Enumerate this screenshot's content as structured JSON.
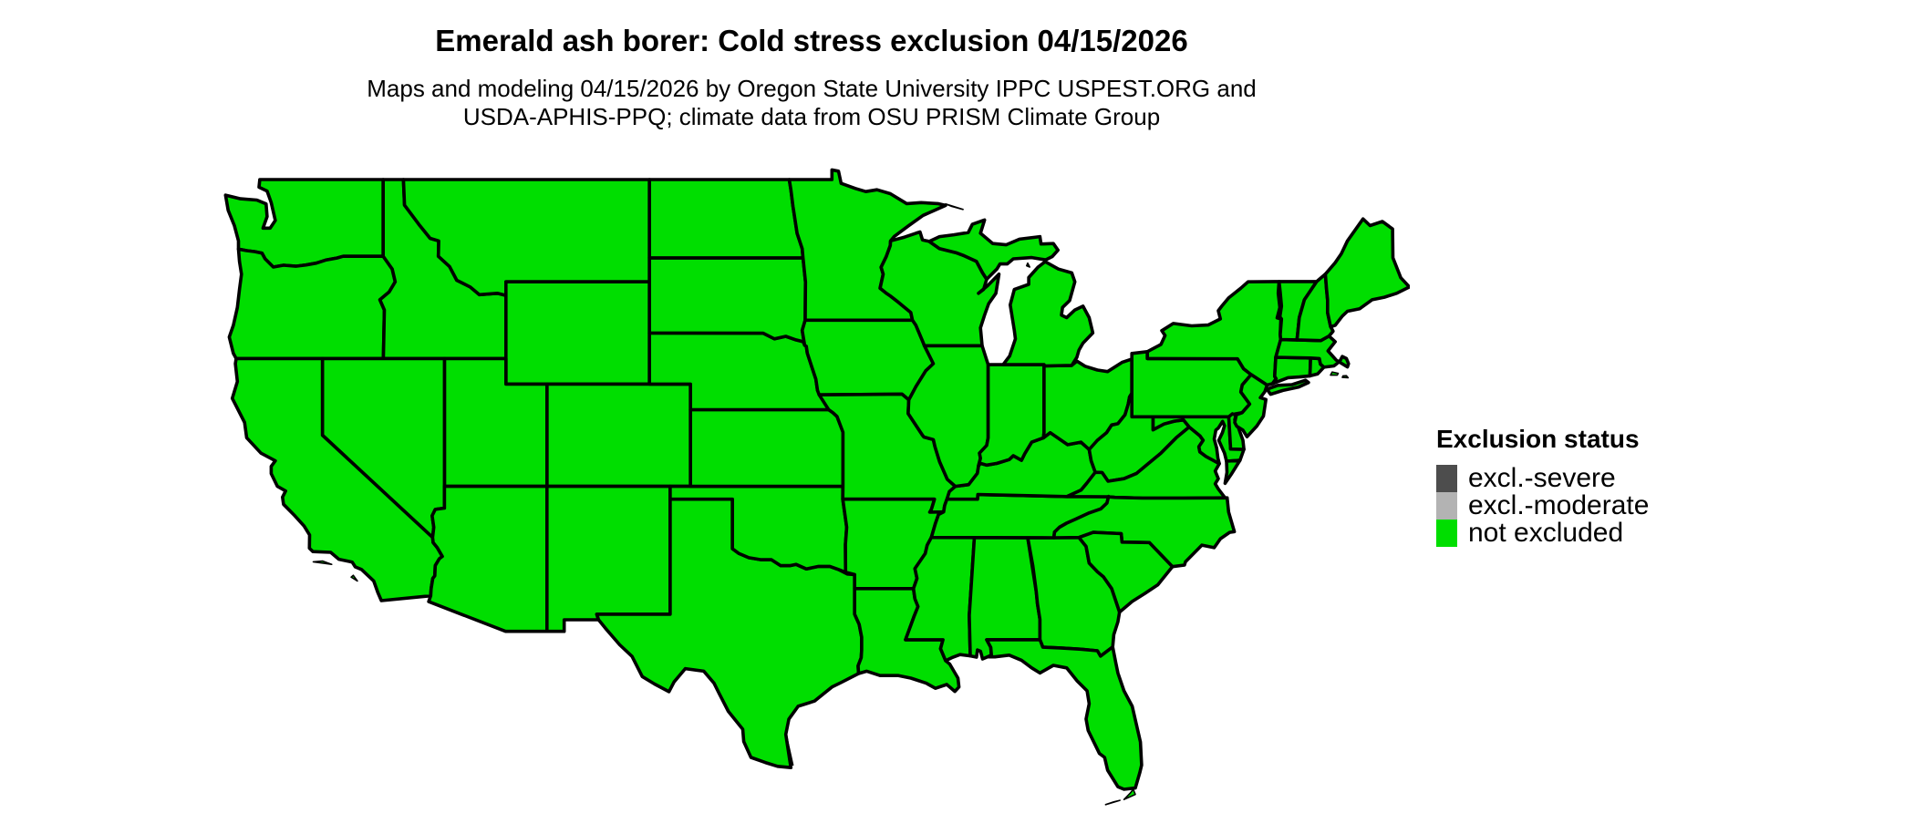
{
  "header": {
    "title": "Emerald ash borer: Cold stress exclusion 04/15/2026",
    "subtitle_line1": "Maps and modeling 04/15/2026 by Oregon State University IPPC USPEST.ORG and",
    "subtitle_line2": "USDA-APHIS-PPQ; climate data from OSU PRISM Climate Group"
  },
  "legend": {
    "title": "Exclusion status",
    "items": [
      {
        "label": "excl.-severe",
        "color": "#4d4d4d"
      },
      {
        "label": "excl.-moderate",
        "color": "#b3b3b3"
      },
      {
        "label": "not excluded",
        "color": "#00de00"
      }
    ]
  },
  "map": {
    "fill_color": "#00de00",
    "border_color": "#000000",
    "background_color": "#ffffff"
  }
}
